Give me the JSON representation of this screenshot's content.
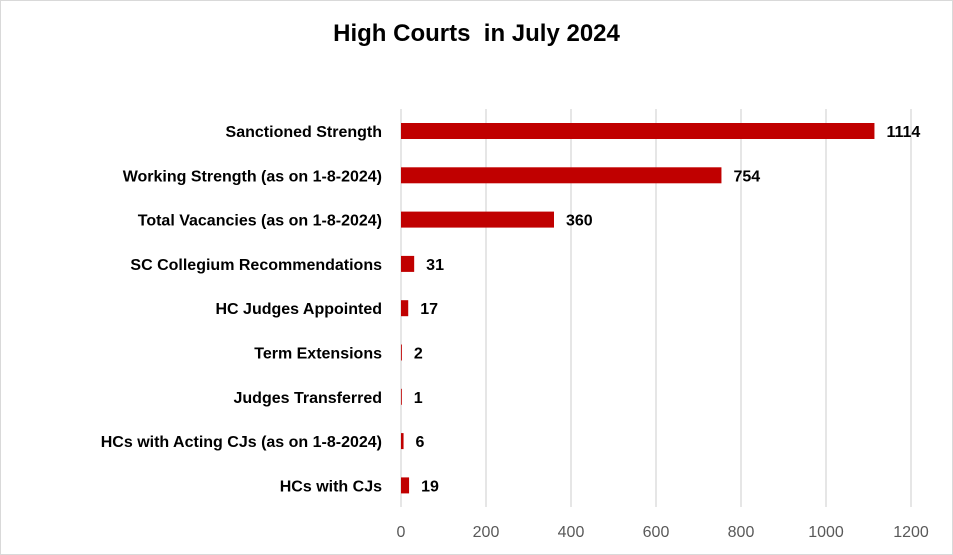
{
  "chart_data": {
    "type": "bar",
    "orientation": "horizontal",
    "title": "High Courts  in July 2024",
    "categories": [
      "Sanctioned Strength",
      "Working Strength (as on 1-8-2024)",
      "Total Vacancies (as on 1-8-2024)",
      "SC Collegium Recommendations",
      "HC Judges Appointed",
      "Term Extensions",
      "Judges Transferred",
      "HCs with Acting CJs (as on 1-8-2024)",
      "HCs with CJs"
    ],
    "values": [
      1114,
      754,
      360,
      31,
      17,
      2,
      1,
      6,
      19
    ],
    "xlim": [
      0,
      1200
    ],
    "xticks": [
      0,
      200,
      400,
      600,
      800,
      1000,
      1200
    ],
    "grid": true,
    "bar_color": "#c00000",
    "gridline_color": "#d9d9d9",
    "data_labels": true,
    "legend": "none"
  }
}
